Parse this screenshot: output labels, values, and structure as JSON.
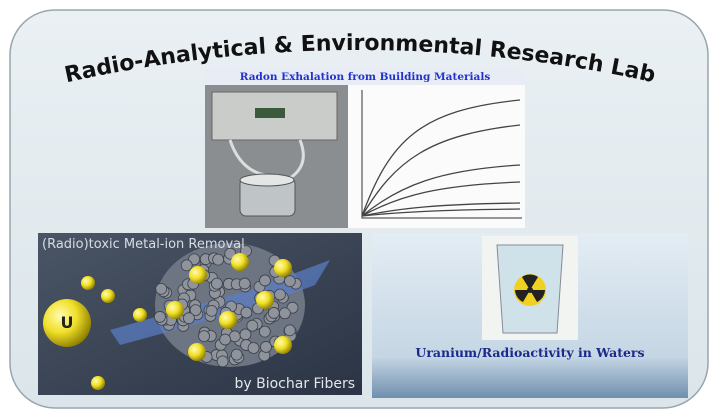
{
  "header": {
    "title": "Radio-Analytical & Environmental Research Lab"
  },
  "panels": [
    {
      "caption": "Radon Exhalation from Building Materials"
    },
    {
      "caption": "(Radio)toxic Metal-ion Removal",
      "label": "U",
      "subcaption": "by Biochar Fibers"
    },
    {
      "caption": "Uranium/Radioactivity in Waters"
    }
  ]
}
